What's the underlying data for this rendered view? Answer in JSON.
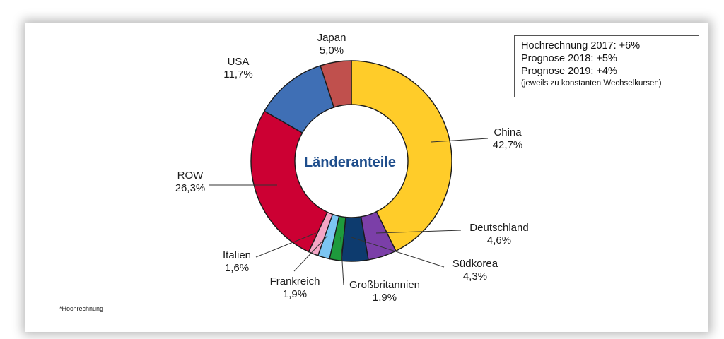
{
  "chart_data": {
    "type": "pie",
    "title": "",
    "center_label": "Länderanteile",
    "donut": true,
    "slices": [
      {
        "label": "China",
        "pct": "42,7%",
        "value": 42.7,
        "color": "#FFCC29"
      },
      {
        "label": "Deutschland",
        "pct": "4,6%",
        "value": 4.6,
        "color": "#7B3FA8"
      },
      {
        "label": "Südkorea",
        "pct": "4,3%",
        "value": 4.3,
        "color": "#0D3B6E"
      },
      {
        "label": "Großbritannien",
        "pct": "1,9%",
        "value": 1.9,
        "color": "#1E9A3C"
      },
      {
        "label": "Frankreich",
        "pct": "1,9%",
        "value": 1.9,
        "color": "#7CC6F2"
      },
      {
        "label": "Italien",
        "pct": "1,6%",
        "value": 1.6,
        "color": "#F4A6C6"
      },
      {
        "label": "ROW",
        "pct": "26,3%",
        "value": 26.3,
        "color": "#CC0033"
      },
      {
        "label": "USA",
        "pct": "11,7%",
        "value": 11.7,
        "color": "#3F6FB5"
      },
      {
        "label": "Japan",
        "pct": "5,0%",
        "value": 5.0,
        "color": "#C0504D"
      }
    ],
    "legend": {
      "lines": [
        "Hochrechnung 2017: +6%",
        "Prognose 2018: +5%",
        "Prognose 2019: +4%"
      ],
      "note": "(jeweils zu konstanten Wechselkursen)"
    },
    "footnote": "*Hochrechnung"
  }
}
